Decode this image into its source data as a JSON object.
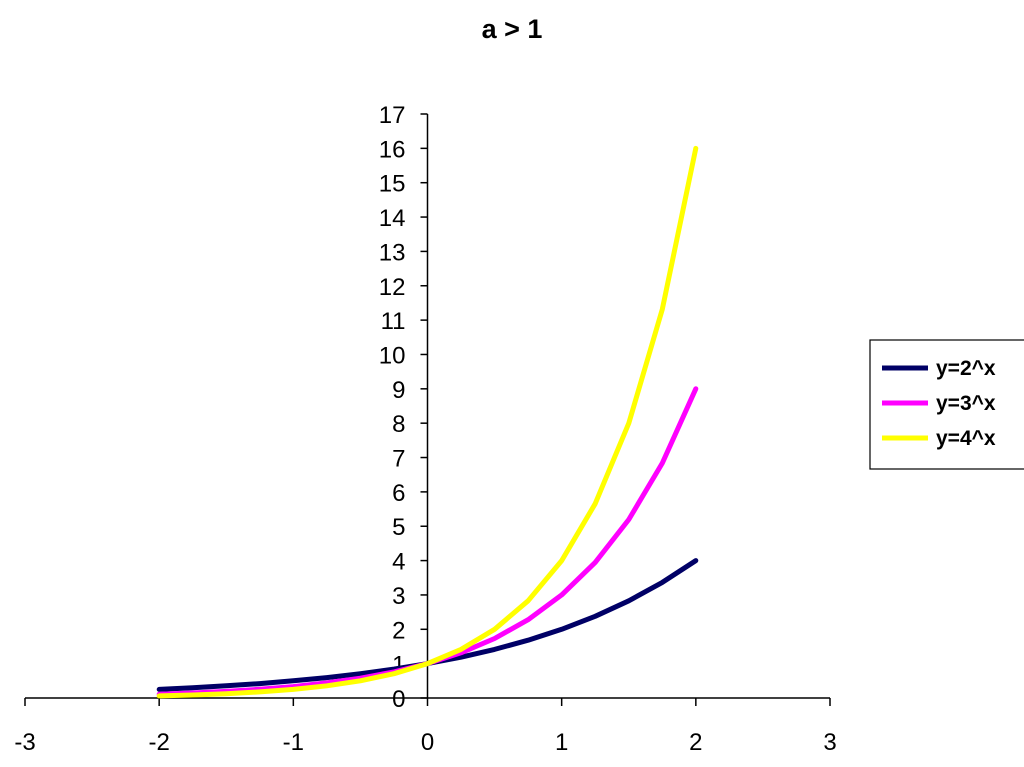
{
  "chart_data": {
    "type": "line",
    "title": "a > 1",
    "xlim": [
      -3,
      3
    ],
    "ylim": [
      0,
      17
    ],
    "x_ticks": [
      -3,
      -2,
      -1,
      0,
      1,
      2,
      3
    ],
    "y_ticks": [
      0,
      1,
      2,
      3,
      4,
      5,
      6,
      7,
      8,
      9,
      10,
      11,
      12,
      13,
      14,
      15,
      16,
      17
    ],
    "x": [
      -2,
      -1.75,
      -1.5,
      -1.25,
      -1,
      -0.75,
      -0.5,
      -0.25,
      0,
      0.25,
      0.5,
      0.75,
      1,
      1.25,
      1.5,
      1.75,
      2
    ],
    "series": [
      {
        "name": "y=2^x",
        "color": "#000066",
        "values": [
          0.25,
          0.297,
          0.354,
          0.42,
          0.5,
          0.595,
          0.707,
          0.841,
          1,
          1.189,
          1.414,
          1.682,
          2,
          2.378,
          2.828,
          3.364,
          4
        ]
      },
      {
        "name": "y=3^x",
        "color": "#ff00ff",
        "values": [
          0.111,
          0.146,
          0.192,
          0.253,
          0.333,
          0.439,
          0.577,
          0.76,
          1,
          1.316,
          1.732,
          2.28,
          3,
          3.948,
          5.196,
          6.839,
          9
        ]
      },
      {
        "name": "y=4^x",
        "color": "#ffff00",
        "values": [
          0.0625,
          0.088,
          0.125,
          0.177,
          0.25,
          0.354,
          0.5,
          0.707,
          1,
          1.414,
          2,
          2.828,
          4,
          5.657,
          8,
          11.314,
          16
        ]
      }
    ],
    "legend_position": "right",
    "grid": false
  }
}
